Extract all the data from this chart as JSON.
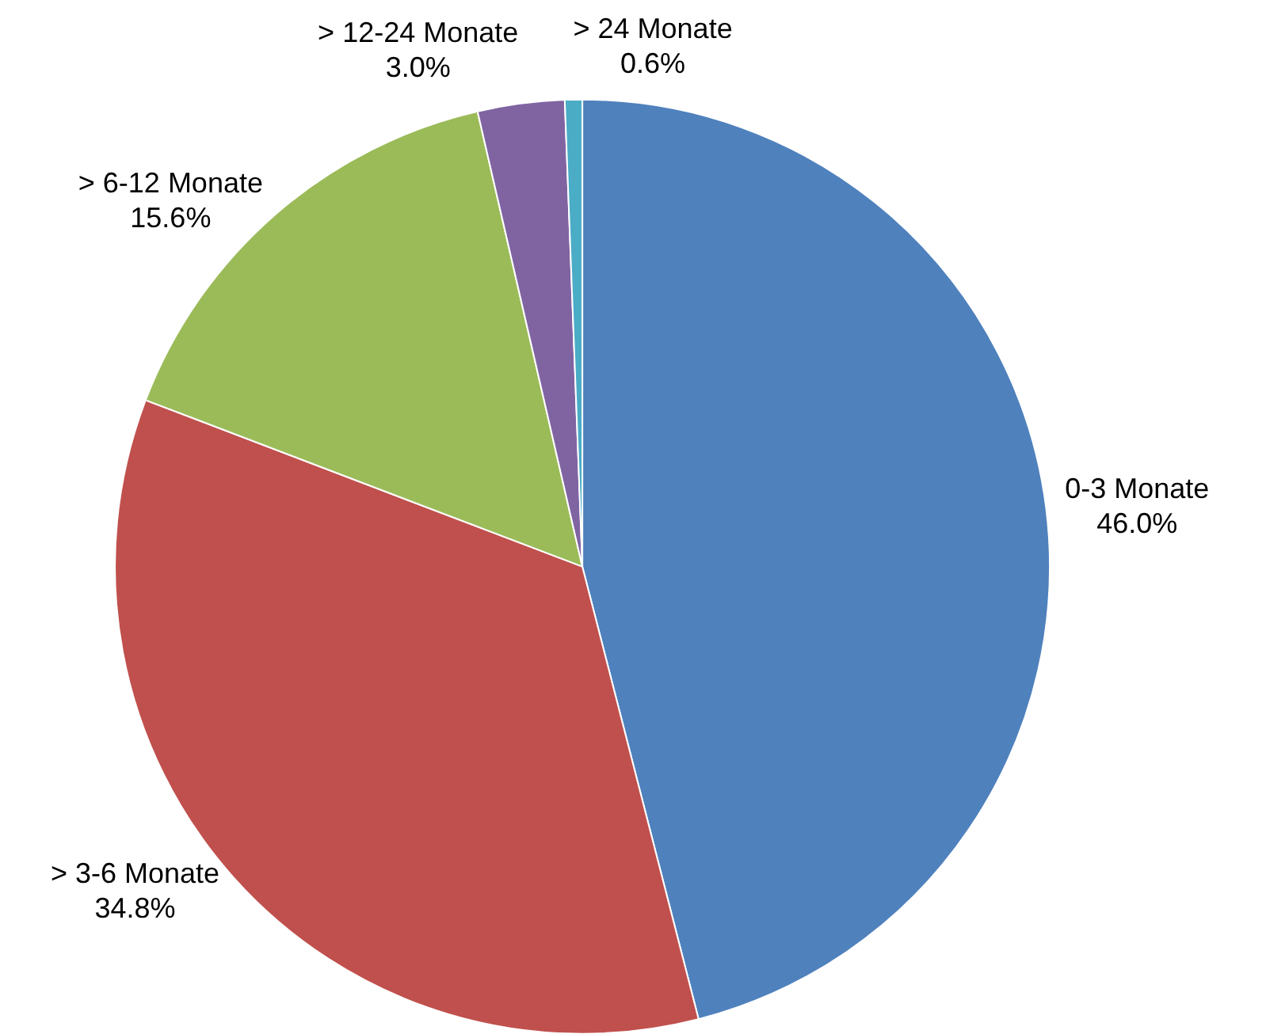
{
  "chart_data": {
    "type": "pie",
    "categories": [
      "0-3 Monate",
      "> 3-6 Monate",
      "> 6-12 Monate",
      "> 12-24 Monate",
      "> 24 Monate"
    ],
    "values": [
      46.0,
      34.8,
      15.6,
      3.0,
      0.6
    ],
    "colors": [
      "#4f81bd",
      "#c0504d",
      "#9bbb59",
      "#8064a2",
      "#4bacc6"
    ],
    "value_labels": [
      "46.0%",
      "34.8%",
      "15.6%",
      "3.0%",
      "0.6%"
    ],
    "legend": false
  }
}
